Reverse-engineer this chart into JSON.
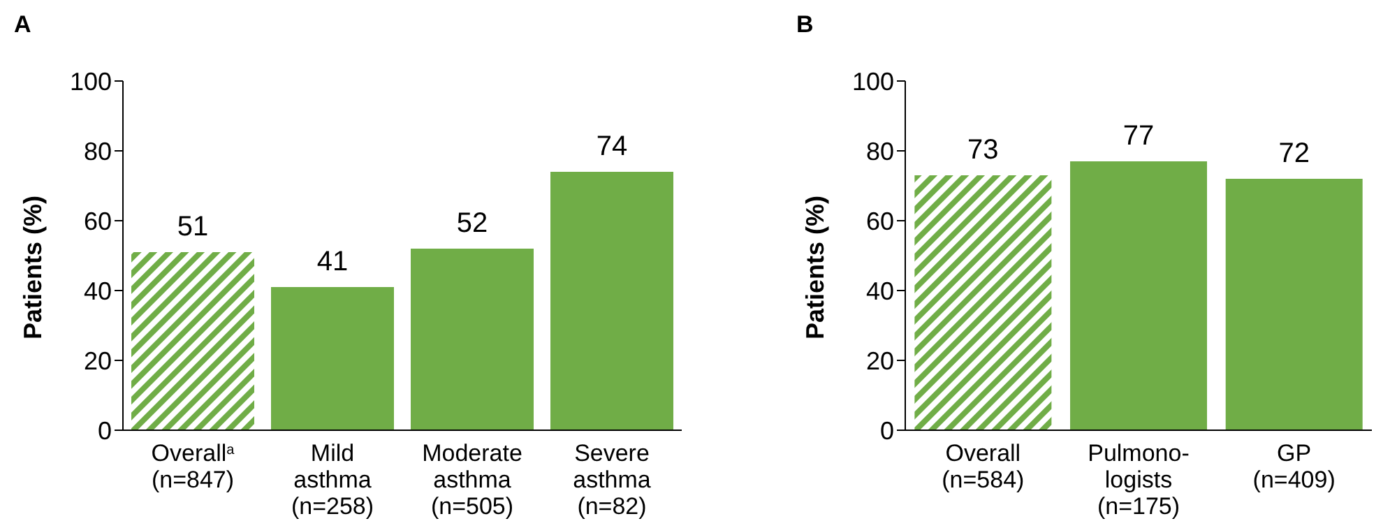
{
  "chart_data": [
    {
      "type": "bar",
      "title": "A",
      "ylabel": "Patients (%)",
      "categories": [
        "Overall$^{a}$\n(n=847)",
        "Mild\nasthma\n(n=258)",
        "Moderate\nasthma\n(n=505)",
        "Severe\nasthma\n(n=82)"
      ],
      "values": [
        51,
        41,
        52,
        74
      ],
      "color": "#70ad47",
      "ylim": [
        0,
        100
      ],
      "yticks": [
        0,
        20,
        40,
        60,
        80,
        100
      ],
      "grid": false,
      "data_labels": true
    },
    {
      "type": "bar",
      "title": "B",
      "ylabel": "Patients (%)",
      "categories": [
        "Overall\n(n=584)",
        "Pulmono-\nlogists\n(n=175)",
        "GP\n(n=409)"
      ],
      "values": [
        73,
        77,
        72
      ],
      "color": "#70ad47",
      "ylim": [
        0,
        100
      ],
      "yticks": [
        0,
        20,
        40,
        60,
        80,
        100
      ],
      "grid": false,
      "data_labels": true
    }
  ]
}
